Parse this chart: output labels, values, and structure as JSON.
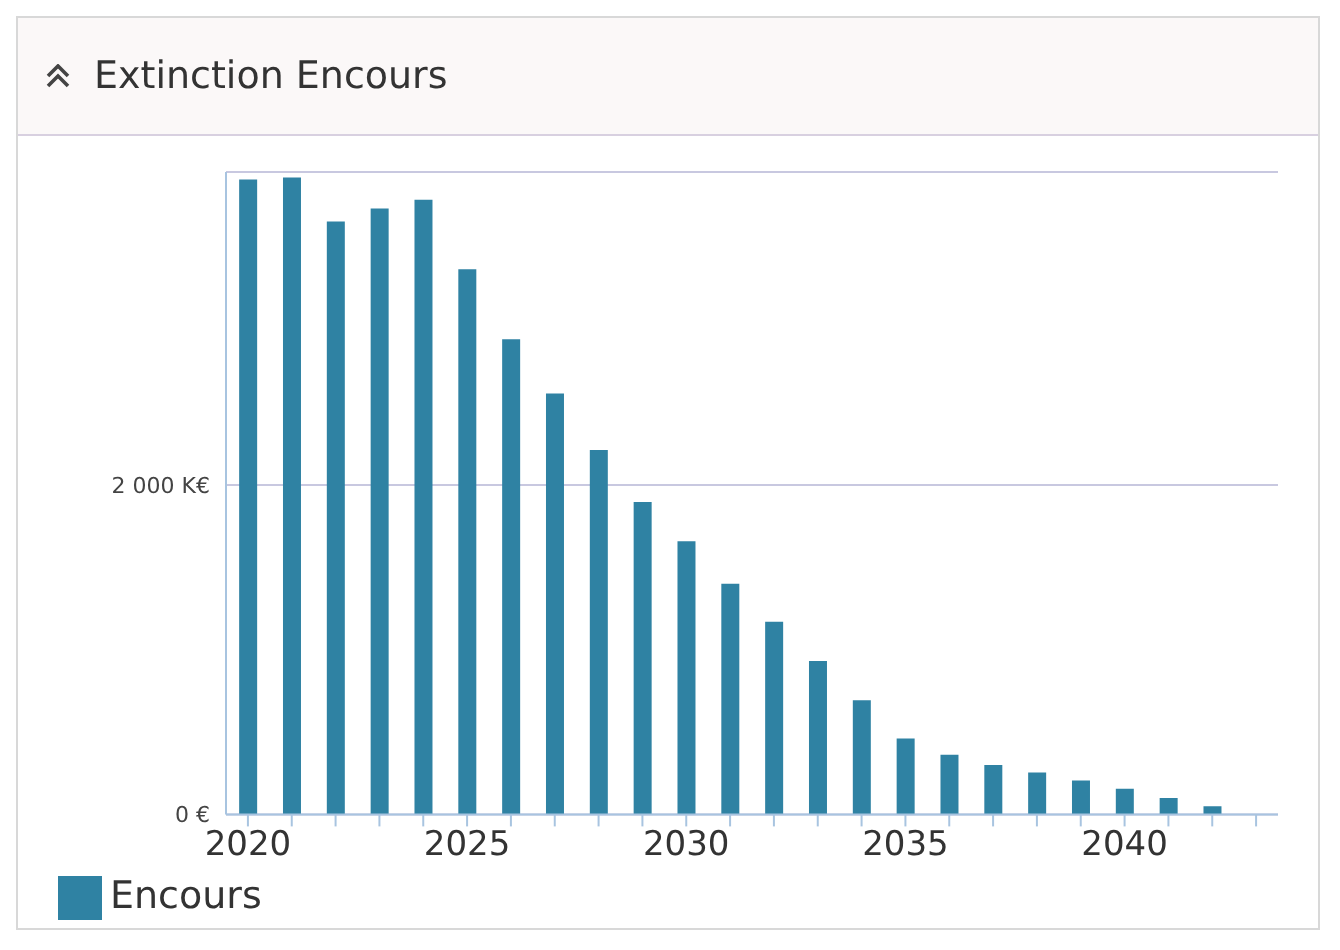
{
  "chart_data": {
    "type": "bar",
    "title": "Extinction Encours",
    "categories": [
      "2020",
      null,
      null,
      null,
      null,
      "2025",
      null,
      null,
      null,
      null,
      "2030",
      null,
      null,
      null,
      null,
      "2035",
      null,
      null,
      null,
      null,
      "2040",
      null,
      null,
      null
    ],
    "series": [
      {
        "name": "Encours",
        "color": "#2f82a3",
        "values": [
          3854,
          3867,
          3600,
          3678,
          3731,
          3310,
          2885,
          2555,
          2213,
          1896,
          1658,
          1401,
          1170,
          931,
          693,
          461,
          362,
          300,
          255,
          206,
          156,
          99,
          49,
          null
        ]
      }
    ],
    "ylim": [
      0,
      3900
    ],
    "yticks": [
      {
        "value": 0,
        "label": "0 €"
      },
      {
        "value": 2000,
        "label": "2 000 K€"
      }
    ],
    "grid": "y",
    "legend": "bottom left"
  }
}
